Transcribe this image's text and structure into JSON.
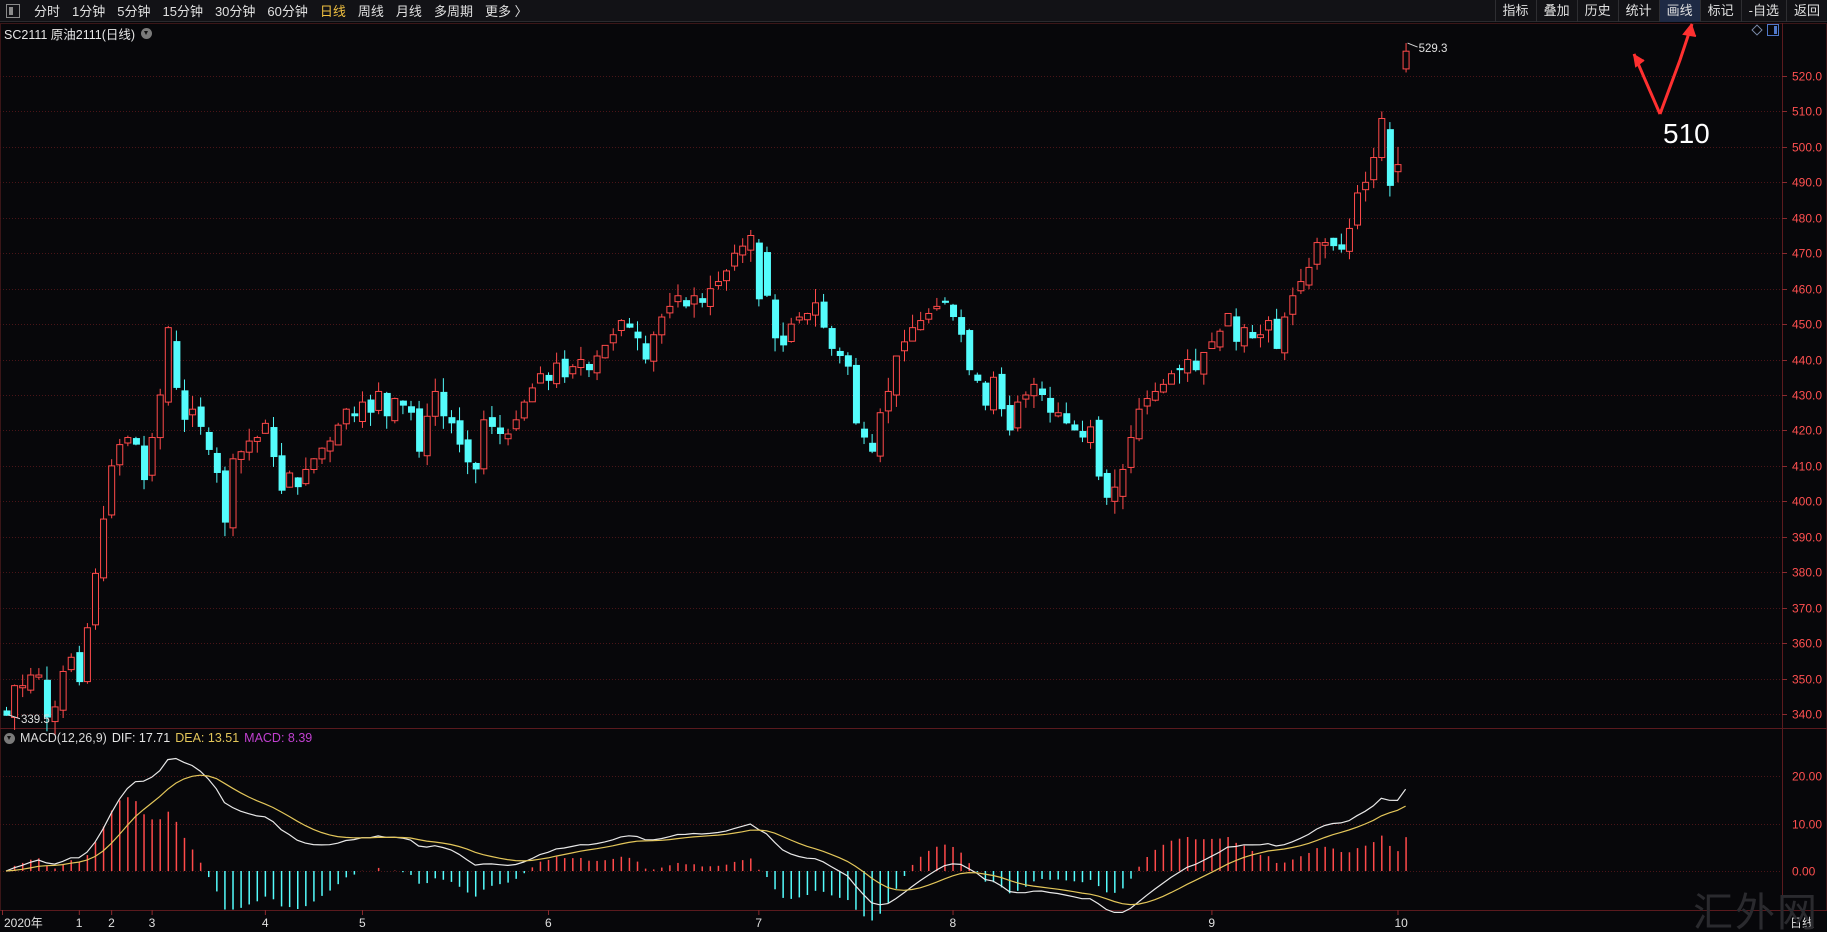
{
  "toolbar": {
    "periods": [
      "分时",
      "1分钟",
      "5分钟",
      "15分钟",
      "30分钟",
      "60分钟",
      "日线",
      "周线",
      "月线",
      "多周期",
      "更多 〉"
    ],
    "active_period": "日线",
    "tools": [
      "指标",
      "叠加",
      "历史",
      "统计",
      "画线",
      "标记",
      "-自选",
      "返回"
    ],
    "highlighted_tool": "画线"
  },
  "chart": {
    "symbol_title": "SC2111 原油2111(日线)",
    "high_label": "529.3",
    "low_label": "339.5",
    "price_axis_labels": [
      "520.0",
      "510.0",
      "500.0",
      "490.0",
      "480.0",
      "470.0",
      "460.0",
      "450.0",
      "440.0",
      "430.0",
      "420.0",
      "410.0",
      "400.0",
      "390.0",
      "380.0",
      "370.0",
      "360.0",
      "350.0",
      "340.0"
    ],
    "x_axis_labels": [
      "2020年",
      "1",
      "2",
      "3",
      "4",
      "5",
      "6",
      "7",
      "8",
      "9",
      "10"
    ],
    "period_label": "日线",
    "annotation": "510"
  },
  "macd": {
    "title": "MACD(12,26,9)",
    "dif": "DIF: 17.71",
    "dea": "DEA: 13.51",
    "macd": "MACD: 8.39",
    "axis_labels": [
      "20.00",
      "10.00",
      "0.00"
    ]
  },
  "colors": {
    "up": "#ff4a4a",
    "down": "#54fcfc",
    "dif_line": "#e8e8e8",
    "dea_line": "#e3c65a",
    "grid": "#4a1518"
  },
  "watermark": "汇外网"
}
